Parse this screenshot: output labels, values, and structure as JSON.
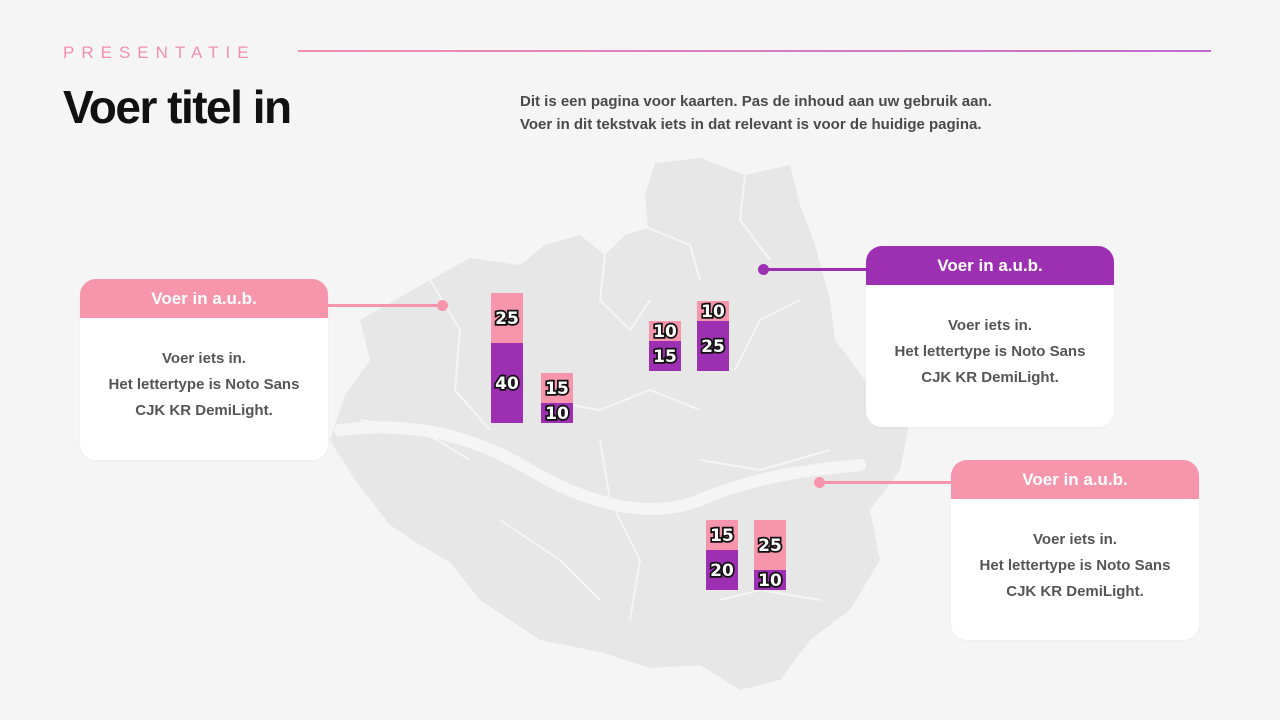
{
  "header": {
    "eyebrow": "PRESENTATIE",
    "title": "Voer titel in",
    "description_line1": "Dit is een pagina voor kaarten. Pas de inhoud aan uw gebruik aan.",
    "description_line2": "Voer in dit tekstvak iets in dat relevant is voor de huidige pagina."
  },
  "cards": [
    {
      "heading": "Voer in a.u.b.",
      "line1": "Voer iets in.",
      "line2": "Het lettertype is Noto Sans",
      "line3": "CJK KR DemiLight."
    },
    {
      "heading": "Voer in a.u.b.",
      "line1": "Voer iets in.",
      "line2": "Het lettertype is Noto Sans",
      "line3": "CJK KR DemiLight."
    },
    {
      "heading": "Voer in a.u.b.",
      "line1": "Voer iets in.",
      "line2": "Het lettertype is Noto Sans",
      "line3": "CJK KR DemiLight."
    }
  ],
  "colors": {
    "pink": "#f695ac",
    "purple": "#9d2fb3",
    "map": "#e6e6e7"
  },
  "chart_data": {
    "type": "bar",
    "stacked": true,
    "series": [
      {
        "color": "#9d2fb3"
      },
      {
        "color": "#f695ac"
      }
    ],
    "groups": [
      {
        "bottom": 40,
        "top": 25
      },
      {
        "bottom": 10,
        "top": 15
      },
      {
        "bottom": 15,
        "top": 10
      },
      {
        "bottom": 25,
        "top": 10
      },
      {
        "bottom": 20,
        "top": 15
      },
      {
        "bottom": 10,
        "top": 25
      }
    ]
  }
}
